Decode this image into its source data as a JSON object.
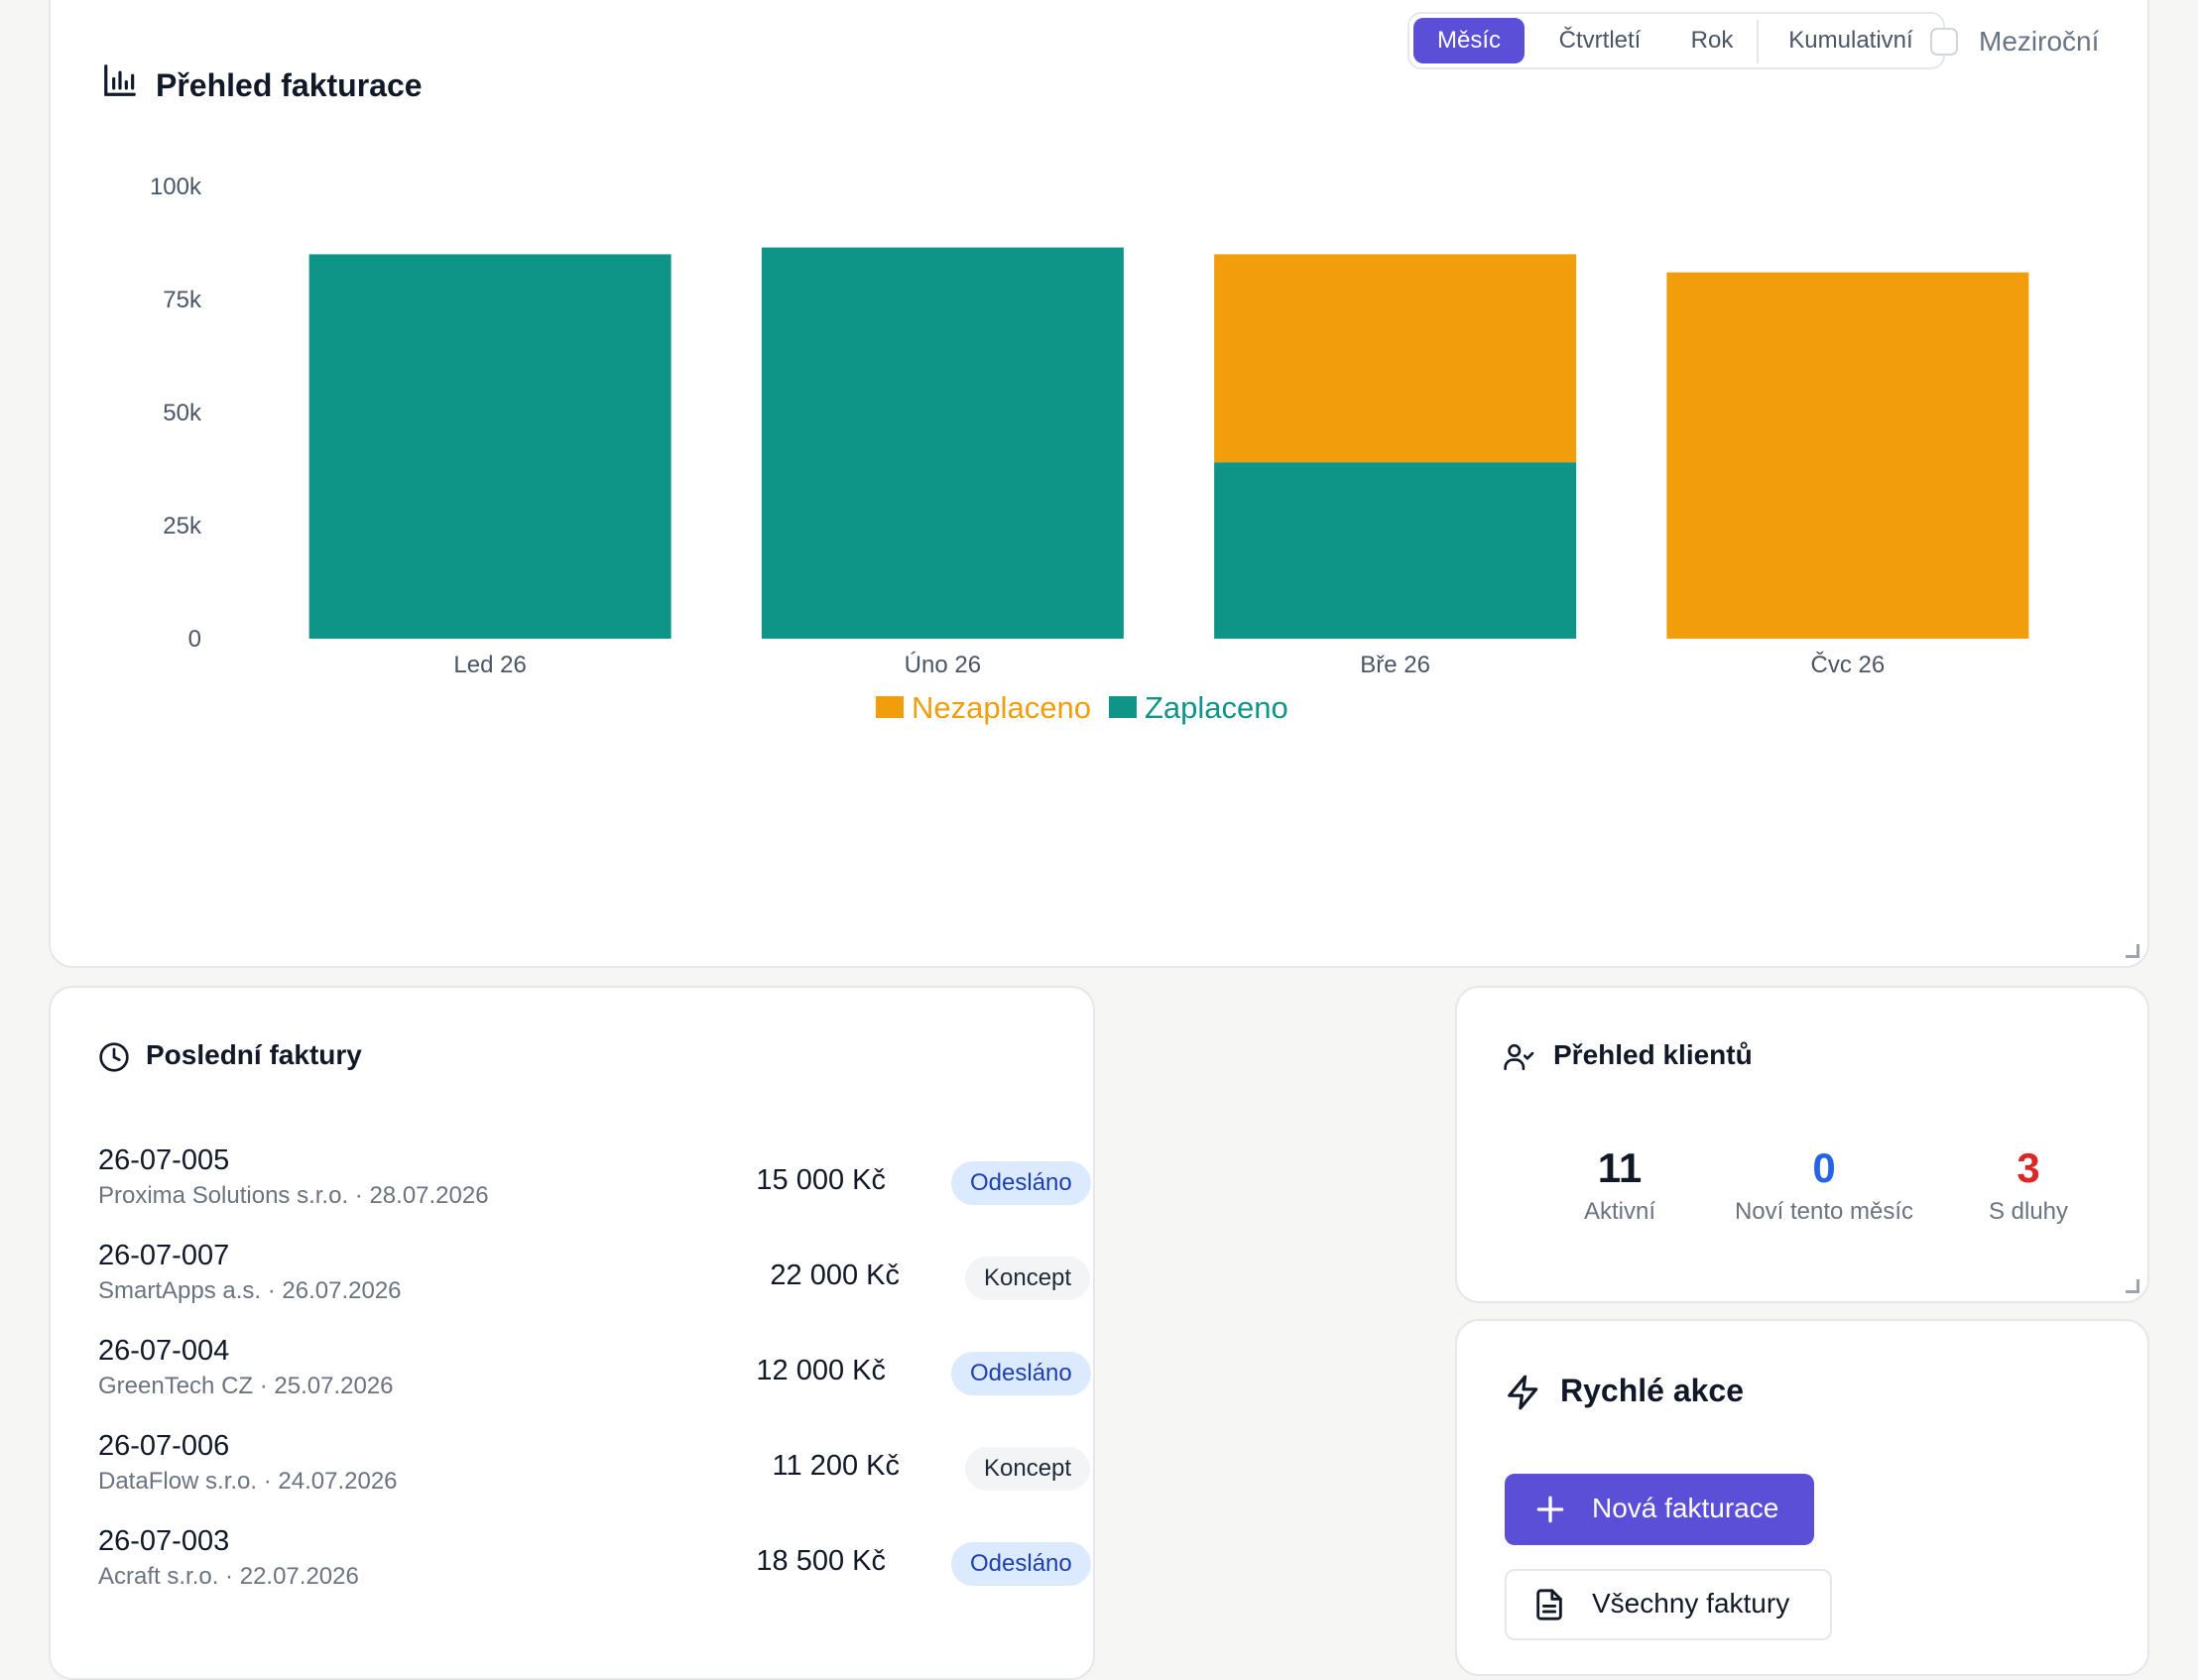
{
  "billing": {
    "title": "Přehled fakturace",
    "period_options": [
      "Měsíc",
      "Čtvrtletí",
      "Rok",
      "Kumulativní"
    ],
    "active_period": "Měsíc",
    "yoy_label": "Meziroční",
    "yoy_checked": false
  },
  "chart_data": {
    "type": "bar",
    "stacked": true,
    "categories": [
      "Led 26",
      "Úno 26",
      "Bře 26",
      "Čvc 26"
    ],
    "series": [
      {
        "name": "Zaplaceno",
        "color": "#0f9488",
        "values": [
          85000,
          86500,
          39000,
          0
        ]
      },
      {
        "name": "Nezaplaceno",
        "color": "#f29e0c",
        "values": [
          0,
          0,
          46000,
          81000
        ]
      }
    ],
    "legend_order": [
      "Nezaplaceno",
      "Zaplaceno"
    ],
    "ylim": [
      0,
      100000
    ],
    "yticks": [
      0,
      25000,
      50000,
      75000,
      100000
    ],
    "ytick_labels": [
      "0",
      "25k",
      "50k",
      "75k",
      "100k"
    ],
    "grid": false,
    "legend_position": "bottom-center"
  },
  "recent": {
    "title": "Poslední faktury",
    "invoices": [
      {
        "number": "26-07-005",
        "client": "Proxima Solutions s.r.o.",
        "date": "28.07.2026",
        "amount": "15 000 Kč",
        "status": "Odesláno",
        "status_type": "sent"
      },
      {
        "number": "26-07-007",
        "client": "SmartApps a.s.",
        "date": "26.07.2026",
        "amount": "22 000 Kč",
        "status": "Koncept",
        "status_type": "draft"
      },
      {
        "number": "26-07-004",
        "client": "GreenTech CZ",
        "date": "25.07.2026",
        "amount": "12 000 Kč",
        "status": "Odesláno",
        "status_type": "sent"
      },
      {
        "number": "26-07-006",
        "client": "DataFlow s.r.o.",
        "date": "24.07.2026",
        "amount": "11 200 Kč",
        "status": "Koncept",
        "status_type": "draft"
      },
      {
        "number": "26-07-003",
        "client": "Acraft s.r.o.",
        "date": "22.07.2026",
        "amount": "18 500 Kč",
        "status": "Odesláno",
        "status_type": "sent"
      }
    ],
    "meta_separator": "·"
  },
  "clients": {
    "title": "Přehled klientů",
    "stats": [
      {
        "value": "11",
        "label": "Aktivní",
        "color": "#111827"
      },
      {
        "value": "0",
        "label": "Noví tento měsíc",
        "color": "#2563eb"
      },
      {
        "value": "3",
        "label": "S dluhy",
        "color": "#dc2626"
      }
    ]
  },
  "quick": {
    "title": "Rychlé akce",
    "new_invoice_label": "Nová fakturace",
    "all_invoices_label": "Všechny faktury"
  },
  "colors": {
    "accent": "#5b4fd8",
    "paid": "#0f9488",
    "unpaid": "#f29e0c"
  }
}
